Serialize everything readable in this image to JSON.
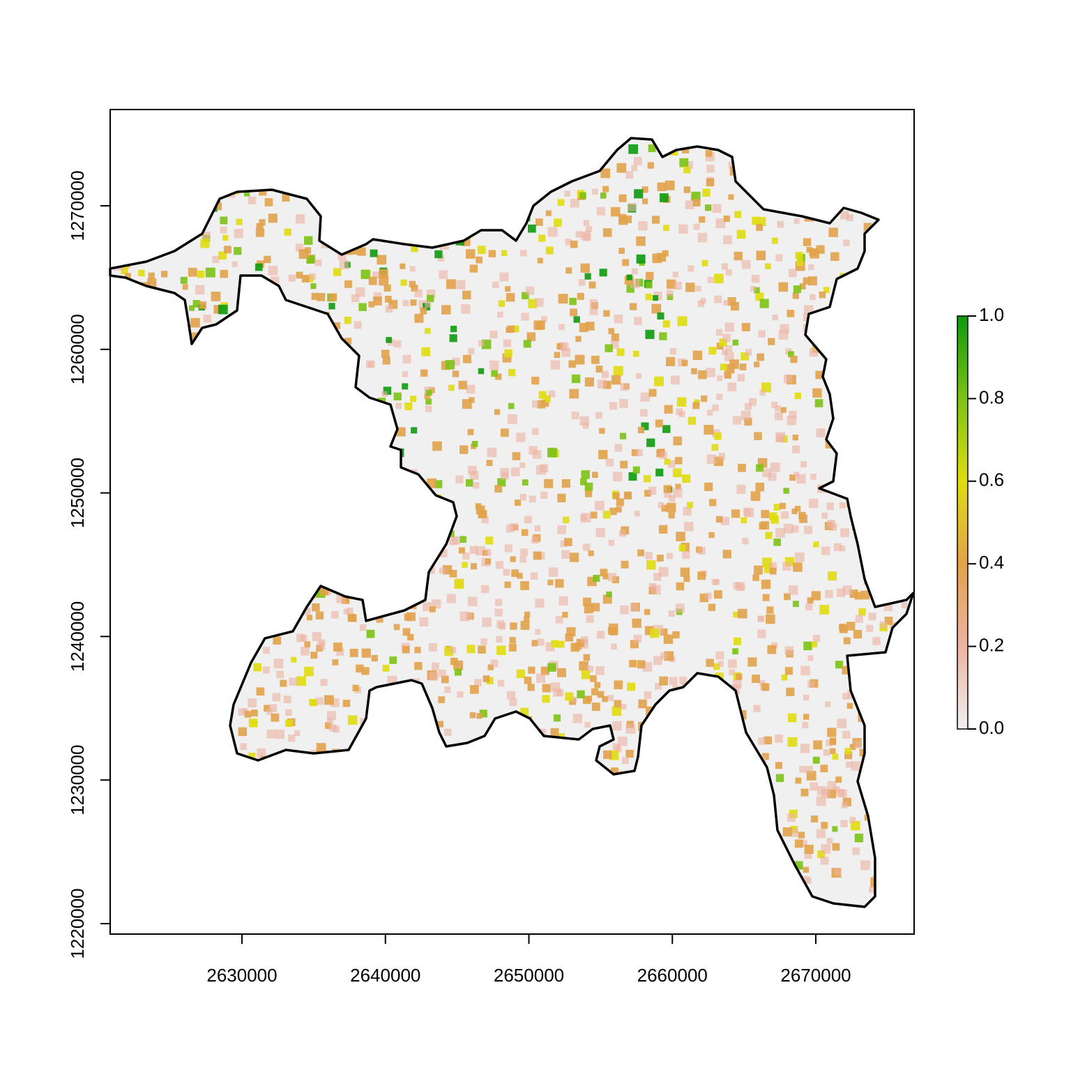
{
  "chart_data": {
    "type": "raster",
    "xlim": [
      2620814,
      2676852
    ],
    "ylim": [
      1219271,
      1276706
    ],
    "xticks": [
      2630000,
      2640000,
      2650000,
      2660000,
      2670000
    ],
    "yticks": [
      1220000,
      1230000,
      1240000,
      1250000,
      1260000,
      1270000
    ],
    "colorbar": {
      "lim": [
        0,
        1
      ],
      "ticks": [
        {
          "value": 0,
          "label": "0.0"
        },
        0.2,
        0.4,
        0.6,
        0.8,
        {
          "value": 1,
          "label": "1.0"
        }
      ],
      "colors": [
        "#f0f0f0",
        "#ecb3a2",
        "#e2a24a",
        "#e0dc10",
        "#7cc214",
        "#0e9a0e"
      ]
    }
  }
}
